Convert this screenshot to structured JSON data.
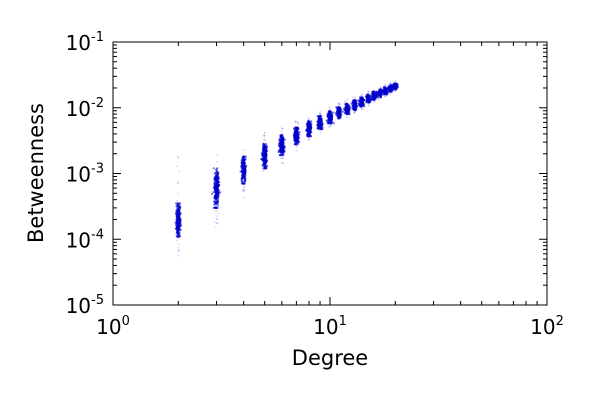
{
  "chart_data": {
    "type": "scatter",
    "title": "",
    "xlabel": "Degree",
    "ylabel": "Betweenness",
    "x_scale": "log",
    "y_scale": "log",
    "xlim": [
      1,
      100
    ],
    "ylim": [
      1e-05,
      0.1
    ],
    "x_ticks": [
      {
        "value": 1,
        "base": "10",
        "exp": "0"
      },
      {
        "value": 10,
        "base": "10",
        "exp": "1"
      },
      {
        "value": 100,
        "base": "10",
        "exp": "2"
      }
    ],
    "y_ticks": [
      {
        "value": 1e-05,
        "base": "10",
        "exp": "-5"
      },
      {
        "value": 0.0001,
        "base": "10",
        "exp": "-4"
      },
      {
        "value": 0.001,
        "base": "10",
        "exp": "-3"
      },
      {
        "value": 0.01,
        "base": "10",
        "exp": "-2"
      },
      {
        "value": 0.1,
        "base": "10",
        "exp": "-1"
      }
    ],
    "grid": false,
    "marker_color": "#0000cc",
    "series": [
      {
        "clusters": [
          {
            "degree": 2,
            "dense_min": 0.00011,
            "dense_max": 0.00035,
            "faint_min": 5e-05,
            "faint_max": 0.002
          },
          {
            "degree": 3,
            "dense_min": 0.0003,
            "dense_max": 0.0012,
            "faint_min": 0.00015,
            "faint_max": 0.0022
          },
          {
            "degree": 4,
            "dense_min": 0.0007,
            "dense_max": 0.0018,
            "faint_min": 0.0004,
            "faint_max": 0.0028
          },
          {
            "degree": 5,
            "dense_min": 0.0012,
            "dense_max": 0.0028,
            "faint_min": 0.0009,
            "faint_max": 0.0045
          },
          {
            "degree": 6,
            "dense_min": 0.0019,
            "dense_max": 0.0038,
            "faint_min": 0.0014,
            "faint_max": 0.005
          },
          {
            "degree": 7,
            "dense_min": 0.0028,
            "dense_max": 0.005,
            "faint_min": 0.0022,
            "faint_max": 0.0065
          },
          {
            "degree": 8,
            "dense_min": 0.0037,
            "dense_max": 0.0062,
            "faint_min": 0.0031,
            "faint_max": 0.0075
          },
          {
            "degree": 9,
            "dense_min": 0.0047,
            "dense_max": 0.0075,
            "faint_min": 0.004,
            "faint_max": 0.009
          },
          {
            "degree": 10,
            "dense_min": 0.0058,
            "dense_max": 0.0088,
            "faint_min": 0.005,
            "faint_max": 0.0105
          },
          {
            "degree": 11,
            "dense_min": 0.0069,
            "dense_max": 0.0102,
            "faint_min": 0.006,
            "faint_max": 0.012
          },
          {
            "degree": 12,
            "dense_min": 0.008,
            "dense_max": 0.0115,
            "faint_min": 0.0072,
            "faint_max": 0.0135
          },
          {
            "degree": 13,
            "dense_min": 0.0092,
            "dense_max": 0.013,
            "faint_min": 0.0083,
            "faint_max": 0.015
          },
          {
            "degree": 14,
            "dense_min": 0.0105,
            "dense_max": 0.0145,
            "faint_min": 0.0095,
            "faint_max": 0.0165
          },
          {
            "degree": 15,
            "dense_min": 0.0118,
            "dense_max": 0.016,
            "faint_min": 0.0108,
            "faint_max": 0.018
          },
          {
            "degree": 16,
            "dense_min": 0.0132,
            "dense_max": 0.0175,
            "faint_min": 0.012,
            "faint_max": 0.0195
          },
          {
            "degree": 17,
            "dense_min": 0.0145,
            "dense_max": 0.019,
            "faint_min": 0.0133,
            "faint_max": 0.021
          },
          {
            "degree": 18,
            "dense_min": 0.016,
            "dense_max": 0.0205,
            "faint_min": 0.0147,
            "faint_max": 0.0225
          },
          {
            "degree": 19,
            "dense_min": 0.0175,
            "dense_max": 0.022,
            "faint_min": 0.016,
            "faint_max": 0.024
          },
          {
            "degree": 20,
            "dense_min": 0.019,
            "dense_max": 0.0235,
            "faint_min": 0.0175,
            "faint_max": 0.0255
          }
        ]
      }
    ]
  }
}
